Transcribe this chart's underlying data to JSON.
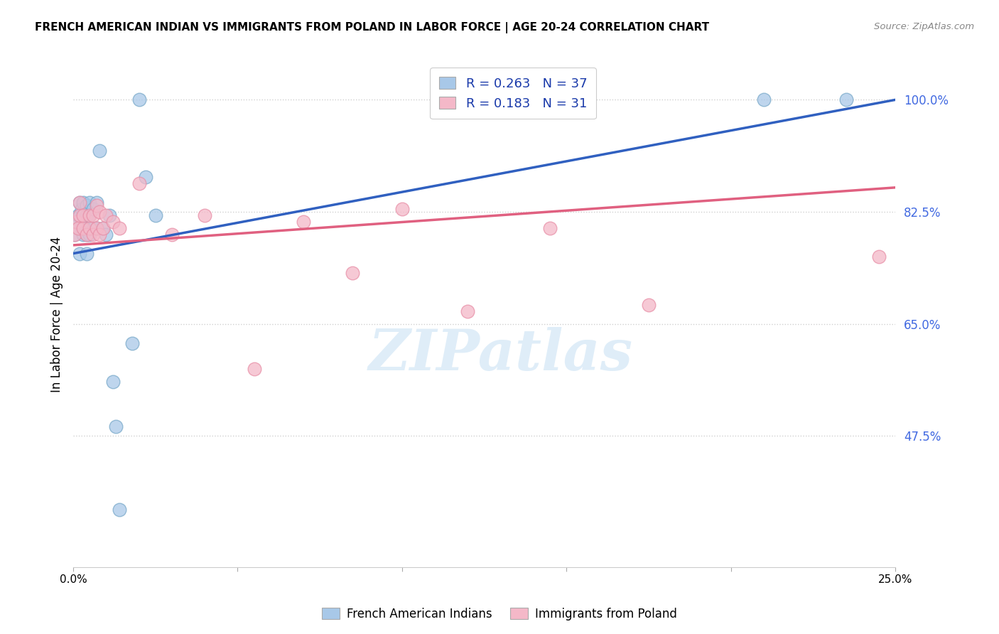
{
  "title": "FRENCH AMERICAN INDIAN VS IMMIGRANTS FROM POLAND IN LABOR FORCE | AGE 20-24 CORRELATION CHART",
  "source": "Source: ZipAtlas.com",
  "ylabel": "In Labor Force | Age 20-24",
  "ytick_vals": [
    1.0,
    0.825,
    0.65,
    0.475
  ],
  "ytick_labels": [
    "100.0%",
    "82.5%",
    "65.0%",
    "47.5%"
  ],
  "xlim": [
    0.0,
    0.25
  ],
  "ylim": [
    0.27,
    1.06
  ],
  "blue_R": 0.263,
  "blue_N": 37,
  "pink_R": 0.183,
  "pink_N": 31,
  "blue_label": "French American Indians",
  "pink_label": "Immigrants from Poland",
  "blue_color": "#a8c8e8",
  "pink_color": "#f4b8c8",
  "blue_edge_color": "#7aaaca",
  "pink_edge_color": "#e890a8",
  "blue_line_color": "#3060c0",
  "pink_line_color": "#e06080",
  "tick_color": "#4169e1",
  "grid_color": "#d0d0d0",
  "background_color": "#ffffff",
  "watermark": "ZIPatlas",
  "blue_scatter_x": [
    0.0005,
    0.001,
    0.0015,
    0.0018,
    0.002,
    0.002,
    0.002,
    0.0025,
    0.0025,
    0.003,
    0.003,
    0.003,
    0.0035,
    0.004,
    0.004,
    0.004,
    0.004,
    0.005,
    0.005,
    0.005,
    0.006,
    0.006,
    0.007,
    0.007,
    0.008,
    0.009,
    0.01,
    0.011,
    0.012,
    0.013,
    0.014,
    0.018,
    0.02,
    0.022,
    0.025,
    0.21,
    0.235
  ],
  "blue_scatter_y": [
    0.79,
    0.81,
    0.82,
    0.8,
    0.76,
    0.82,
    0.84,
    0.8,
    0.83,
    0.79,
    0.82,
    0.84,
    0.8,
    0.76,
    0.79,
    0.82,
    0.835,
    0.79,
    0.82,
    0.84,
    0.8,
    0.83,
    0.8,
    0.84,
    0.92,
    0.8,
    0.79,
    0.82,
    0.56,
    0.49,
    0.36,
    0.62,
    1.0,
    0.88,
    0.82,
    1.0,
    1.0
  ],
  "pink_scatter_x": [
    0.0005,
    0.001,
    0.0015,
    0.002,
    0.002,
    0.003,
    0.003,
    0.004,
    0.005,
    0.005,
    0.006,
    0.006,
    0.007,
    0.007,
    0.008,
    0.008,
    0.009,
    0.01,
    0.012,
    0.014,
    0.02,
    0.03,
    0.04,
    0.055,
    0.07,
    0.085,
    0.1,
    0.12,
    0.145,
    0.175,
    0.245
  ],
  "pink_scatter_y": [
    0.79,
    0.81,
    0.8,
    0.82,
    0.84,
    0.8,
    0.82,
    0.79,
    0.8,
    0.82,
    0.79,
    0.82,
    0.8,
    0.835,
    0.79,
    0.825,
    0.8,
    0.82,
    0.81,
    0.8,
    0.87,
    0.79,
    0.82,
    0.58,
    0.81,
    0.73,
    0.83,
    0.67,
    0.8,
    0.68,
    0.755
  ]
}
